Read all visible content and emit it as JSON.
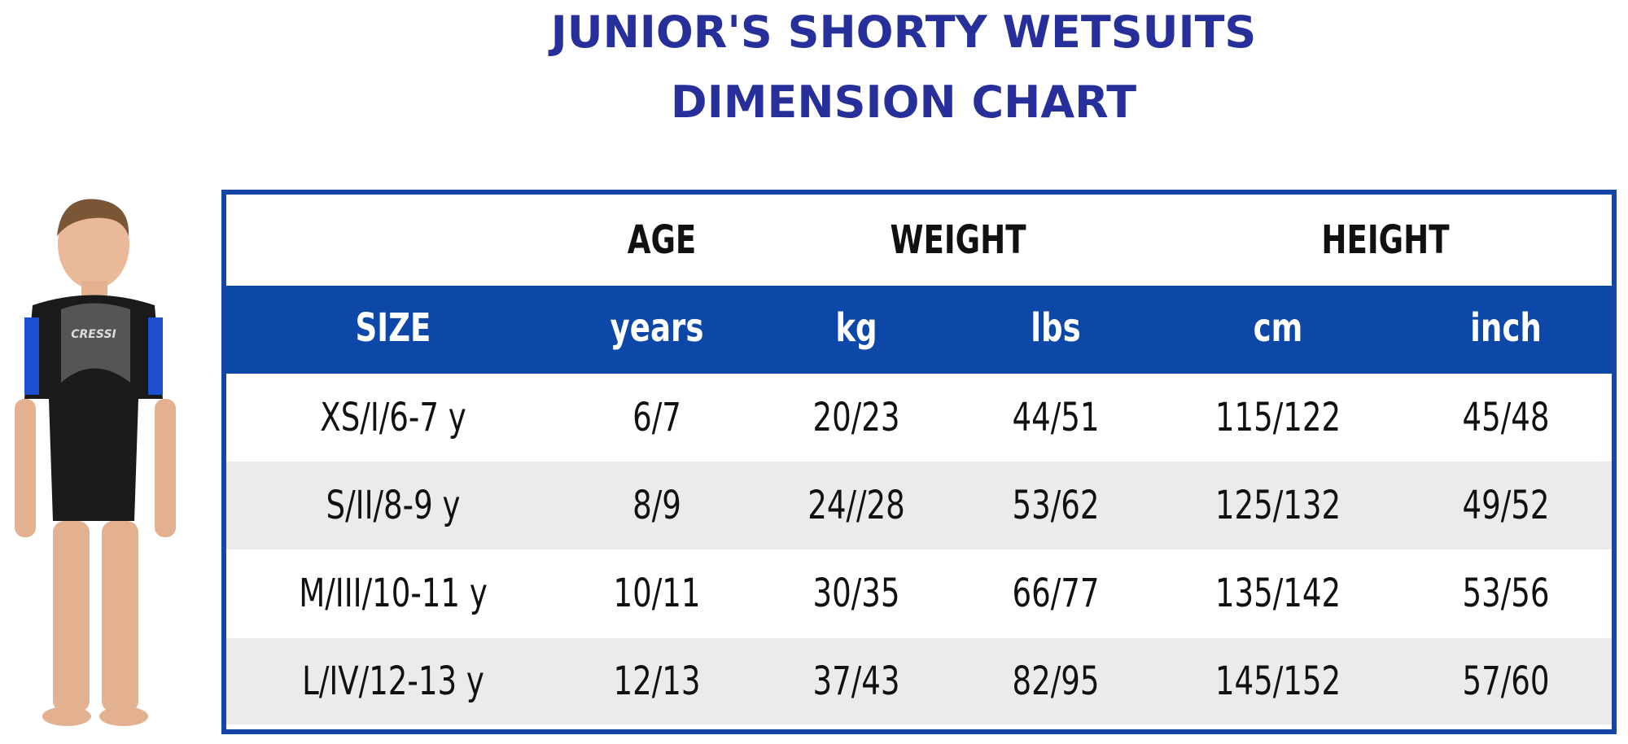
{
  "title": {
    "line1": "JUNIOR'S SHORTY WETSUITS",
    "line2": "DIMENSION CHART"
  },
  "colors": {
    "title": "#27309a",
    "accent_blue": "#0d47a8",
    "stripe_gray": "#ebebeb"
  },
  "table": {
    "group_headers": [
      "AGE",
      "WEIGHT",
      "HEIGHT"
    ],
    "sub_headers": [
      "SIZE",
      "years",
      "kg",
      "lbs",
      "cm",
      "inch"
    ],
    "rows": [
      [
        "XS/I/6-7 y",
        "6/7",
        "20/23",
        "44/51",
        "115/122",
        "45/48"
      ],
      [
        "S/II/8-9 y",
        "8/9",
        "24//28",
        "53/62",
        "125/132",
        "49/52"
      ],
      [
        "M/III/10-11 y",
        "10/11",
        "30/35",
        "66/77",
        "135/142",
        "53/56"
      ],
      [
        "L/IV/12-13 y",
        "12/13",
        "37/43",
        "82/95",
        "145/152",
        "57/60"
      ]
    ]
  },
  "image": {
    "wetsuit_brand": "CRESSI"
  }
}
